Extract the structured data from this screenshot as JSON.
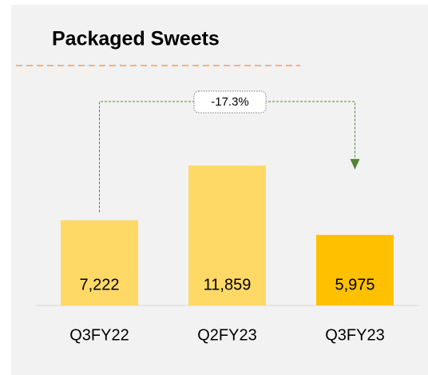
{
  "chart_data": {
    "type": "bar",
    "title": "Packaged Sweets",
    "categories": [
      "Q3FY22",
      "Q2FY23",
      "Q3FY23"
    ],
    "values": [
      7222,
      11859,
      5975
    ],
    "value_labels": [
      "7,222",
      "11,859",
      "5,975"
    ],
    "colors": [
      "#FFD966",
      "#FFD966",
      "#FFC000"
    ],
    "annotation": "-17.3%"
  }
}
